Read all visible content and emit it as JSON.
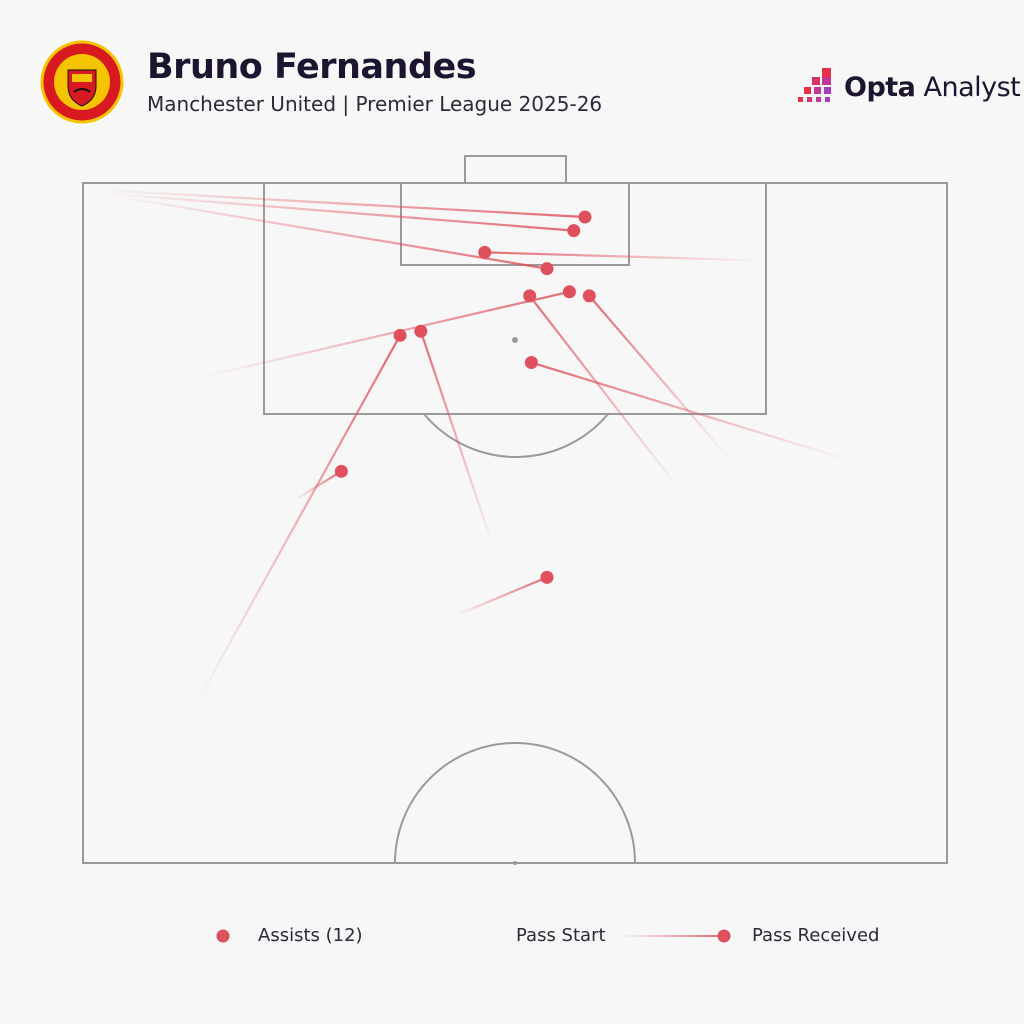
{
  "header": {
    "title": "Bruno Fernandes",
    "subtitle": "Manchester United | Premier League 2025-26",
    "brand_bold": "Opta",
    "brand_light": "Analyst",
    "crest_text": "MANCHESTER UNITED"
  },
  "legend": {
    "assists_label": "Assists (12)",
    "pass_start_label": "Pass Start",
    "pass_received_label": "Pass Received"
  },
  "colors": {
    "accent": "#e0505c",
    "pitch_lines": "#9a9a9a",
    "background": "#f7f7f7"
  },
  "chart_data": {
    "type": "pass-map",
    "pitch": "attacking half, vertical, goal at top",
    "units": "Opta pitch coordinates: x = length % toward goal (0-100), y = width % left to right",
    "passes": [
      {
        "start": [
          99.5,
          1.4
        ],
        "end": [
          97.5,
          58.1
        ]
      },
      {
        "start": [
          99.3,
          1.4
        ],
        "end": [
          96.5,
          56.8
        ]
      },
      {
        "start": [
          99.1,
          3.1
        ],
        "end": [
          93.7,
          53.7
        ]
      },
      {
        "start": [
          94.3,
          78.4
        ],
        "end": [
          94.9,
          46.5
        ]
      },
      {
        "start": [
          85.7,
          13.5
        ],
        "end": [
          92.0,
          56.3
        ]
      },
      {
        "start": [
          79.8,
          74.7
        ],
        "end": [
          91.7,
          58.6
        ]
      },
      {
        "start": [
          77.4,
          69.1
        ],
        "end": [
          91.7,
          51.7
        ]
      },
      {
        "start": [
          79.6,
          88.8
        ],
        "end": [
          86.8,
          51.9
        ]
      },
      {
        "start": [
          61.6,
          13.0
        ],
        "end": [
          88.8,
          36.7
        ]
      },
      {
        "start": [
          73.2,
          47.5
        ],
        "end": [
          89.1,
          39.1
        ]
      },
      {
        "start": [
          76.7,
          24.5
        ],
        "end": [
          78.8,
          29.9
        ]
      },
      {
        "start": [
          68.2,
          43.1
        ],
        "end": [
          71.0,
          53.7
        ]
      }
    ]
  }
}
